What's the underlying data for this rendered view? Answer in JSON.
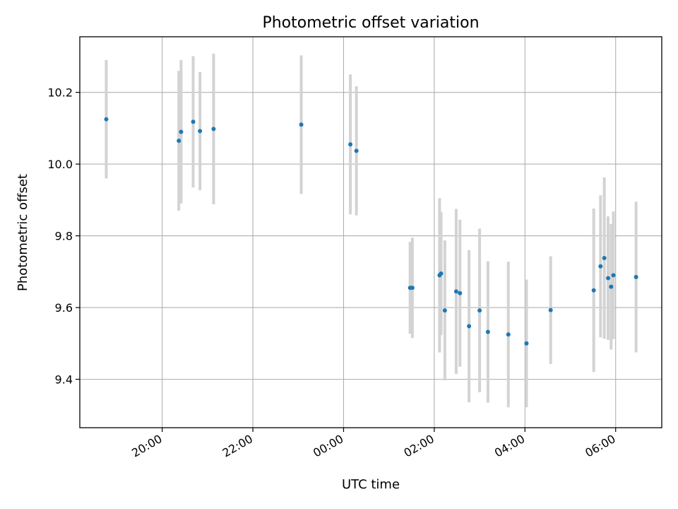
{
  "chart_data": {
    "type": "scatter",
    "title": "Photometric offset variation",
    "xlabel": "UTC time",
    "ylabel": "Photometric offset",
    "x_axis_type": "time",
    "x_range": [
      "18:11",
      "07:01"
    ],
    "ylim": [
      9.265,
      10.355
    ],
    "grid": true,
    "marker_color": "#1f77b4",
    "errorbar_color": "#d3d3d3",
    "x_ticks": [
      "20:00",
      "22:00",
      "00:00",
      "02:00",
      "04:00",
      "06:00"
    ],
    "y_ticks": [
      9.4,
      9.6,
      9.8,
      10.0,
      10.2
    ],
    "y_tick_labels": [
      "9.4",
      "9.6",
      "9.8",
      "10.0",
      "10.2"
    ],
    "points": [
      {
        "x": "18:46",
        "y": 10.125,
        "err": 0.165
      },
      {
        "x": "20:22",
        "y": 10.065,
        "err": 0.195
      },
      {
        "x": "20:25",
        "y": 10.09,
        "err": 0.2
      },
      {
        "x": "20:41",
        "y": 10.118,
        "err": 0.183
      },
      {
        "x": "20:50",
        "y": 10.092,
        "err": 0.165
      },
      {
        "x": "21:08",
        "y": 10.098,
        "err": 0.21
      },
      {
        "x": "23:04",
        "y": 10.11,
        "err": 0.193
      },
      {
        "x": "00:09",
        "y": 10.055,
        "err": 0.195
      },
      {
        "x": "00:17",
        "y": 10.037,
        "err": 0.18
      },
      {
        "x": "01:28",
        "y": 9.655,
        "err": 0.128
      },
      {
        "x": "01:31",
        "y": 9.655,
        "err": 0.14
      },
      {
        "x": "02:07",
        "y": 9.69,
        "err": 0.215
      },
      {
        "x": "02:09",
        "y": 9.695,
        "err": 0.172
      },
      {
        "x": "02:14",
        "y": 9.592,
        "err": 0.195
      },
      {
        "x": "02:29",
        "y": 9.645,
        "err": 0.23
      },
      {
        "x": "02:34",
        "y": 9.64,
        "err": 0.205
      },
      {
        "x": "02:46",
        "y": 9.548,
        "err": 0.212
      },
      {
        "x": "03:00",
        "y": 9.592,
        "err": 0.228
      },
      {
        "x": "03:11",
        "y": 9.532,
        "err": 0.197
      },
      {
        "x": "03:38",
        "y": 9.525,
        "err": 0.203
      },
      {
        "x": "04:02",
        "y": 9.5,
        "err": 0.178
      },
      {
        "x": "04:34",
        "y": 9.593,
        "err": 0.15
      },
      {
        "x": "05:31",
        "y": 9.648,
        "err": 0.228
      },
      {
        "x": "05:40",
        "y": 9.715,
        "err": 0.198
      },
      {
        "x": "05:45",
        "y": 9.738,
        "err": 0.225
      },
      {
        "x": "05:50",
        "y": 9.682,
        "err": 0.172
      },
      {
        "x": "05:54",
        "y": 9.658,
        "err": 0.175
      },
      {
        "x": "05:57",
        "y": 9.69,
        "err": 0.178
      },
      {
        "x": "06:27",
        "y": 9.685,
        "err": 0.21
      }
    ]
  }
}
